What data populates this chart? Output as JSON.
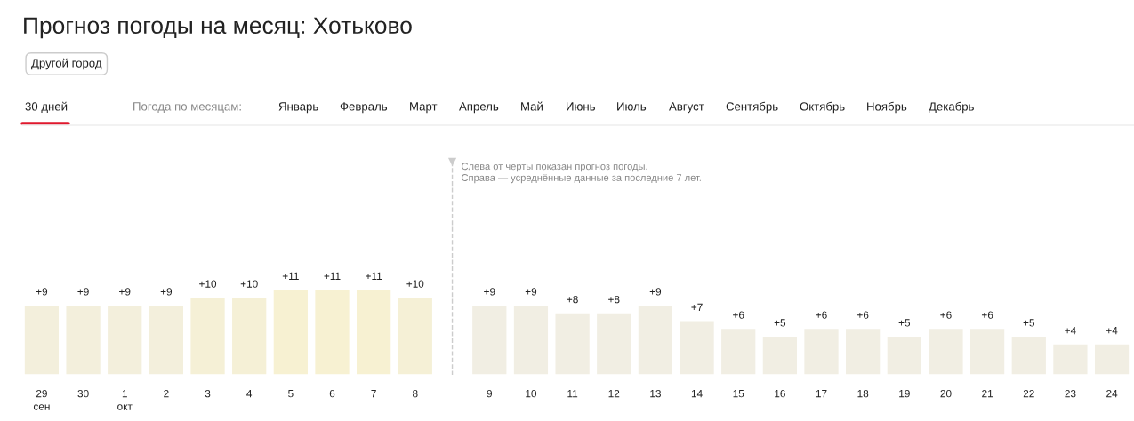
{
  "chart_data": {
    "type": "bar",
    "title": "Прогноз погоды на месяц: Хотьково",
    "categories": [
      "29\nсен",
      "30",
      "1\nокт",
      "2",
      "3",
      "4",
      "5",
      "6",
      "7",
      "8",
      "9",
      "10",
      "11",
      "12",
      "13",
      "14",
      "15",
      "16",
      "17",
      "18",
      "19",
      "20",
      "21",
      "22",
      "23",
      "24"
    ],
    "values": [
      9,
      9,
      9,
      9,
      10,
      10,
      11,
      11,
      11,
      10,
      9,
      9,
      8,
      8,
      9,
      7,
      6,
      5,
      6,
      6,
      5,
      6,
      6,
      5,
      4,
      4
    ],
    "value_labels": [
      "+9",
      "+9",
      "+9",
      "+9",
      "+10",
      "+10",
      "+11",
      "+11",
      "+11",
      "+10",
      "+9",
      "+9",
      "+8",
      "+8",
      "+9",
      "+7",
      "+6",
      "+5",
      "+6",
      "+6",
      "+5",
      "+6",
      "+6",
      "+5",
      "+4",
      "+4"
    ],
    "colors": [
      "#f3efdc",
      "#f3efdc",
      "#f3efdc",
      "#f3efdc",
      "#f5f0d6",
      "#f5f0d6",
      "#f7f1d2",
      "#f7f1d2",
      "#f7f1d2",
      "#f5f0d6",
      "#f1eee3",
      "#f1eee3",
      "#f1eee3",
      "#f1eee3",
      "#f1eee3",
      "#f1eee3",
      "#f1eee3",
      "#f1eee3",
      "#f1eee3",
      "#f1eee3",
      "#f1eee3",
      "#f1eee3",
      "#f1eee3",
      "#f1eee3",
      "#f1eee3",
      "#f1eee3"
    ],
    "tick_labels": "x",
    "grid": false,
    "legend": false,
    "annotations": [
      "Другой город",
      "30 дней",
      "Погода по месяцам:",
      "Январь",
      "Февраль",
      "Март",
      "Апрель",
      "Май",
      "Июнь",
      "Июль",
      "Август",
      "Сентябрь",
      "Октябрь",
      "Ноябрь",
      "Декабрь",
      "Слева от черты показан прогноз погоды.\nСправа — усреднённые данные за последние 7 лет."
    ]
  }
}
